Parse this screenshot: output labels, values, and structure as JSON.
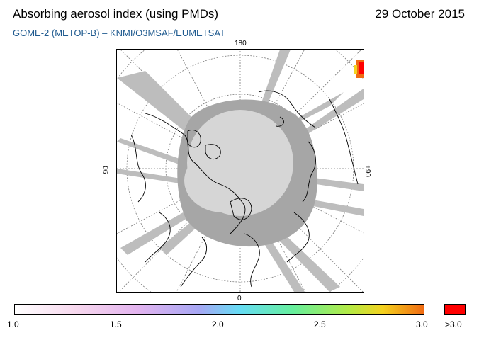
{
  "header": {
    "title": "Absorbing aerosol index (using PMDs)",
    "date": "29 October 2015",
    "subtitle": "GOME-2 (METOP-B)  –   KNMI/O3MSAF/EUMETSAT"
  },
  "map": {
    "projection": "north polar stereographic",
    "longitude_labels": {
      "top": "180",
      "bottom": "0",
      "left": "-90",
      "right": "+90"
    },
    "colors": {
      "no_data": "#c8c8c8",
      "night": "#a6a6a6",
      "coast": "#000000",
      "graticule": "#7a7a7a"
    }
  },
  "colorbar": {
    "tick_labels": [
      "1.0",
      "1.5",
      "2.0",
      "2.5",
      "3.0"
    ],
    "overflow_label": ">3.0",
    "overflow_color": "#ff0000",
    "range": [
      1.0,
      3.0
    ]
  }
}
